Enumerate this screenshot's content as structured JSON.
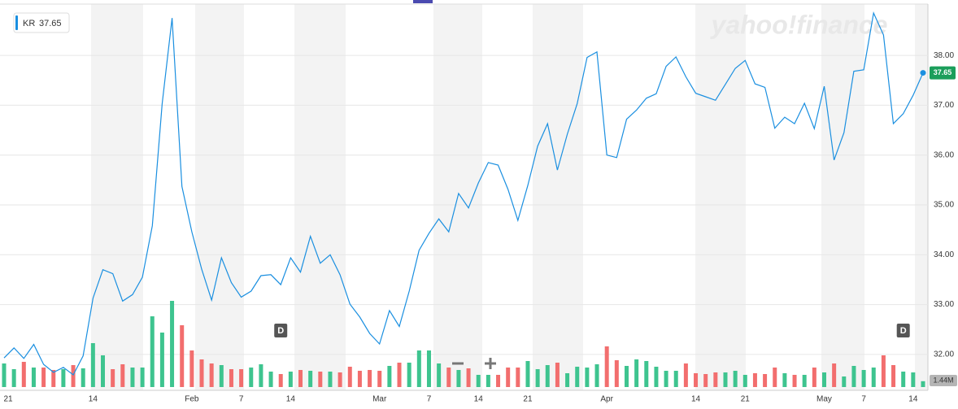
{
  "chart_data": {
    "type": "line",
    "logo": "yahoo!finance",
    "categories": [
      "21",
      null,
      null,
      null,
      null,
      null,
      null,
      null,
      null,
      "14",
      null,
      null,
      null,
      null,
      null,
      null,
      null,
      null,
      null,
      "Feb",
      null,
      null,
      null,
      null,
      "7",
      null,
      null,
      null,
      null,
      "14",
      null,
      null,
      null,
      null,
      null,
      null,
      null,
      null,
      "Mar",
      null,
      null,
      null,
      null,
      "7",
      null,
      null,
      null,
      null,
      "14",
      null,
      null,
      null,
      null,
      "21",
      null,
      null,
      null,
      null,
      null,
      null,
      null,
      "Apr",
      null,
      null,
      null,
      null,
      null,
      null,
      null,
      null,
      "14",
      null,
      null,
      null,
      null,
      "21",
      null,
      null,
      null,
      null,
      null,
      null,
      null,
      "May",
      null,
      null,
      null,
      "7",
      null,
      null,
      null,
      null,
      "14",
      null
    ],
    "series": [
      {
        "name": "KR",
        "color": "#1a8fe0",
        "values": [
          31.93,
          32.13,
          31.92,
          32.2,
          31.8,
          31.64,
          31.74,
          31.59,
          31.97,
          33.13,
          33.7,
          33.62,
          33.07,
          33.2,
          33.55,
          34.58,
          37.03,
          38.75,
          35.37,
          34.46,
          33.71,
          33.09,
          33.94,
          33.44,
          33.15,
          33.27,
          33.58,
          33.6,
          33.4,
          33.94,
          33.65,
          34.37,
          33.83,
          34.0,
          33.6,
          33.01,
          32.75,
          32.42,
          32.21,
          32.88,
          32.56,
          33.27,
          34.09,
          34.43,
          34.72,
          34.46,
          35.23,
          34.94,
          35.44,
          35.85,
          35.8,
          35.31,
          34.69,
          35.39,
          36.18,
          36.63,
          35.7,
          36.42,
          37.03,
          37.96,
          38.07,
          36.0,
          35.95,
          36.72,
          36.9,
          37.14,
          37.23,
          37.78,
          37.97,
          37.57,
          37.24,
          37.17,
          37.1,
          37.42,
          37.74,
          37.9,
          37.43,
          37.36,
          36.54,
          36.76,
          36.63,
          37.04,
          36.53,
          37.38,
          35.9,
          36.45,
          37.68,
          37.71,
          38.85,
          38.41,
          36.63,
          36.83,
          37.2,
          37.65
        ]
      }
    ],
    "volume": {
      "up_color": "#3ec48f",
      "down_color": "#f26e6e",
      "ylim": [
        0,
        24
      ],
      "values": [
        5.8,
        4.4,
        6.2,
        4.8,
        4.8,
        4.2,
        4.4,
        5.4,
        4.6,
        10.8,
        7.8,
        4.4,
        5.6,
        4.8,
        4.8,
        17.4,
        13.4,
        21.2,
        15.2,
        9.0,
        6.8,
        5.8,
        5.4,
        4.4,
        4.4,
        4.8,
        5.6,
        3.8,
        3.2,
        3.8,
        4.2,
        4.0,
        3.8,
        3.8,
        3.6,
        5.0,
        4.0,
        4.2,
        4.0,
        5.2,
        6.0,
        6.0,
        9.0,
        9.0,
        5.8,
        4.8,
        4.2,
        4.6,
        3.0,
        3.0,
        3.0,
        4.8,
        4.8,
        6.4,
        4.4,
        5.4,
        6.0,
        3.4,
        5.0,
        4.8,
        5.6,
        10.0,
        6.6,
        5.2,
        6.8,
        6.4,
        5.0,
        4.0,
        4.0,
        5.8,
        3.4,
        3.2,
        3.6,
        3.6,
        4.0,
        3.0,
        3.4,
        3.2,
        4.8,
        3.4,
        3.0,
        3.0,
        4.8,
        3.6,
        5.8,
        2.6,
        5.2,
        4.2,
        4.8,
        7.8,
        5.4,
        3.8,
        3.6,
        1.44
      ],
      "value_labels": [
        null,
        null,
        null,
        null,
        null,
        null,
        null,
        null,
        null,
        null,
        null,
        null,
        null,
        null,
        null,
        null,
        null,
        null,
        null,
        null,
        null,
        null,
        null,
        null,
        null,
        null,
        null,
        null,
        null,
        null,
        null,
        null,
        null,
        null,
        null,
        null,
        null,
        null,
        null,
        null,
        null,
        null,
        null,
        null,
        null,
        null,
        null,
        null,
        null,
        null,
        null,
        null,
        null,
        null,
        null,
        null,
        null,
        null,
        null,
        null,
        null,
        null,
        null,
        null,
        null,
        null,
        null,
        null,
        null,
        null,
        null,
        null,
        null,
        null,
        null,
        null,
        null,
        null,
        null,
        null,
        null,
        null,
        null,
        null,
        null,
        null,
        null,
        null,
        null,
        null,
        null,
        null,
        null,
        "1.44M"
      ]
    },
    "annotations": [
      {
        "index": 28,
        "label": "D"
      },
      {
        "index": 91,
        "label": "D"
      }
    ],
    "ylim": [
      31.28,
      39.03
    ],
    "yticks": [
      {
        "value": 32,
        "label": "32.00"
      },
      {
        "value": 33,
        "label": "33.00"
      },
      {
        "value": 34,
        "label": "34.00"
      },
      {
        "value": 35,
        "label": "35.00"
      },
      {
        "value": 36,
        "label": "36.00"
      },
      {
        "value": 37,
        "label": "37.00"
      },
      {
        "value": 38,
        "label": "38.00"
      }
    ],
    "grid": true
  }
}
